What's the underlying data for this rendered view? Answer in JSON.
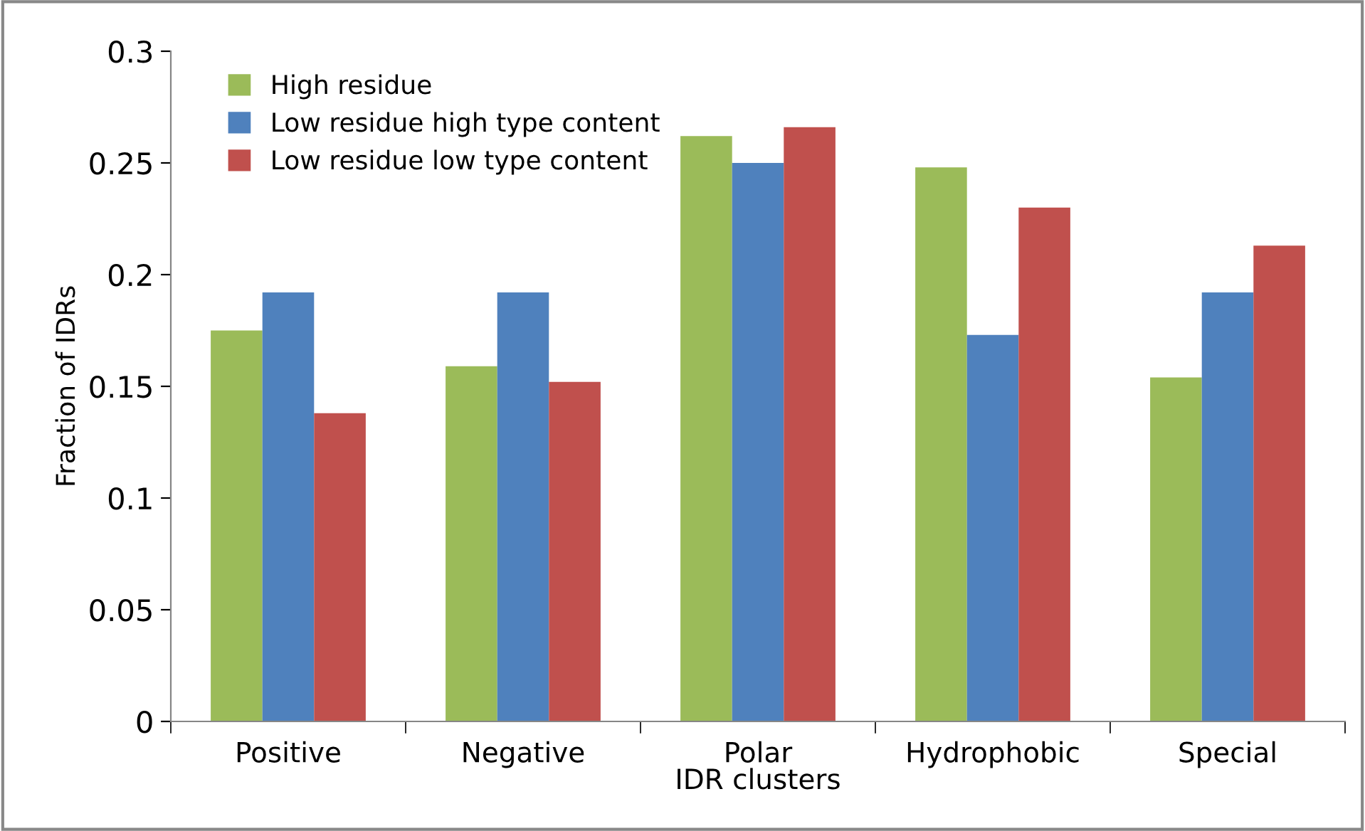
{
  "chart_data": {
    "type": "bar",
    "xlabel": "IDR clusters",
    "ylabel": "Fraction of IDRs",
    "categories": [
      "Positive",
      "Negative",
      "Polar",
      "Hydrophobic",
      "Special"
    ],
    "series": [
      {
        "name": "High residue",
        "color": "#9bbb59",
        "values": [
          0.175,
          0.159,
          0.262,
          0.248,
          0.154
        ]
      },
      {
        "name": "Low residue high type content",
        "color": "#4f81bd",
        "values": [
          0.192,
          0.192,
          0.25,
          0.173,
          0.192
        ]
      },
      {
        "name": "Low residue low type content",
        "color": "#c0504d",
        "values": [
          0.138,
          0.152,
          0.266,
          0.23,
          0.213
        ]
      }
    ],
    "ylim": [
      0,
      0.3
    ],
    "yticks": [
      0,
      {
        "value": 0.05,
        "label": "0.05"
      },
      {
        "value": 0.1,
        "label": "0.1"
      },
      {
        "value": 0.15,
        "label": "0.15"
      },
      {
        "value": 0.2,
        "label": "0.2"
      },
      {
        "value": 0.25,
        "label": "0.25"
      },
      {
        "value": 0.3,
        "label": "0.3"
      }
    ],
    "grid": false,
    "legend": "top left"
  }
}
